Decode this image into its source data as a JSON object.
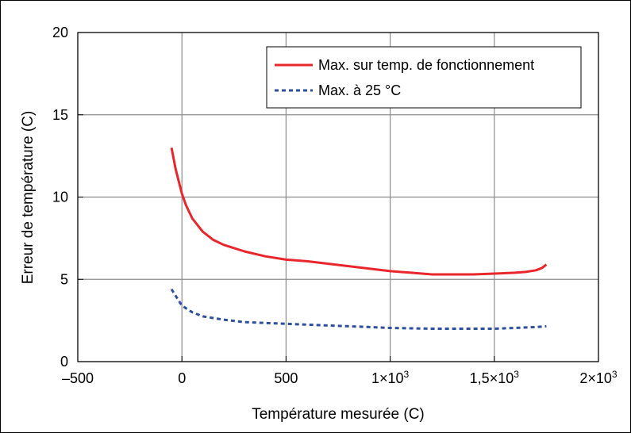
{
  "chart_data": {
    "type": "line",
    "xlabel": "Température mesurée (C)",
    "ylabel": "Erreur de température (C)",
    "xlim": [
      -500,
      2000
    ],
    "ylim": [
      0,
      20
    ],
    "grid": true,
    "legend_position": "top-right",
    "x_ticks": [
      {
        "value": -500,
        "label": "–500"
      },
      {
        "value": 0,
        "label": "0"
      },
      {
        "value": 500,
        "label": "500"
      },
      {
        "value": 1000,
        "label": "1×10",
        "sup": "3"
      },
      {
        "value": 1500,
        "label": "1,5×10",
        "sup": "3"
      },
      {
        "value": 2000,
        "label": "2×10",
        "sup": "3"
      }
    ],
    "y_ticks": [
      {
        "value": 0,
        "label": "0"
      },
      {
        "value": 5,
        "label": "5"
      },
      {
        "value": 10,
        "label": "10"
      },
      {
        "value": 15,
        "label": "15"
      },
      {
        "value": 20,
        "label": "20"
      }
    ],
    "series": [
      {
        "name": "Max. sur temp. de fonctionnement",
        "color": "#e8262b",
        "style": "solid",
        "x": [
          -50,
          -30,
          -10,
          0,
          20,
          50,
          100,
          150,
          200,
          300,
          400,
          500,
          600,
          700,
          800,
          900,
          1000,
          1100,
          1200,
          1300,
          1400,
          1500,
          1600,
          1650,
          1700,
          1730,
          1750
        ],
        "y": [
          13.0,
          11.7,
          10.7,
          10.2,
          9.5,
          8.7,
          7.9,
          7.4,
          7.1,
          6.7,
          6.4,
          6.2,
          6.1,
          5.95,
          5.8,
          5.65,
          5.5,
          5.4,
          5.3,
          5.3,
          5.3,
          5.35,
          5.4,
          5.45,
          5.55,
          5.7,
          5.9
        ]
      },
      {
        "name": "Max. à 25 °C",
        "color": "#2e4f9f",
        "style": "dashed",
        "x": [
          -50,
          -30,
          -10,
          0,
          50,
          100,
          200,
          300,
          500,
          700,
          900,
          1000,
          1200,
          1400,
          1500,
          1600,
          1700,
          1750
        ],
        "y": [
          4.4,
          4.0,
          3.6,
          3.4,
          3.0,
          2.75,
          2.55,
          2.4,
          2.3,
          2.2,
          2.1,
          2.05,
          2.0,
          2.0,
          2.0,
          2.05,
          2.1,
          2.15
        ]
      }
    ]
  }
}
